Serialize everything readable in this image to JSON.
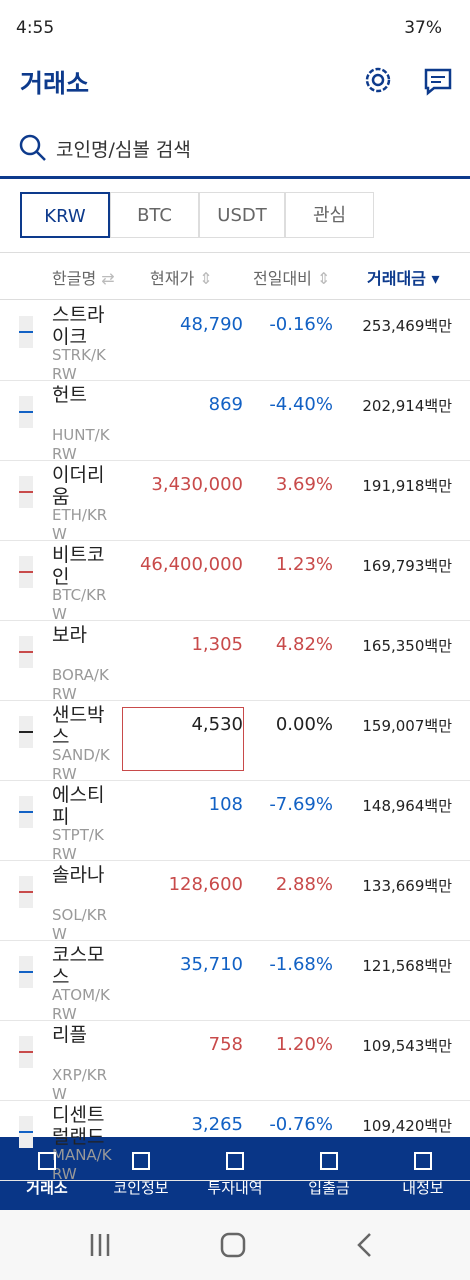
{
  "status_bar": {
    "time": "4:55",
    "battery": "37%"
  },
  "header": {
    "title": "거래소"
  },
  "search": {
    "placeholder": "코인명/심볼 검색"
  },
  "tabs": [
    "KRW",
    "BTC",
    "USDT",
    "관심"
  ],
  "columns": [
    "한글명",
    "현재가",
    "전일대비",
    "거래대금"
  ],
  "rows": [
    {
      "name": "스트라이크",
      "symbol": "STRK/KRW",
      "price": "48,790",
      "change": "-0.16%",
      "volume": "253,469백만",
      "color": "#1261c4"
    },
    {
      "name": "헌트",
      "symbol": "HUNT/KRW",
      "price": "869",
      "change": "-4.40%",
      "volume": "202,914백만",
      "color": "#1261c4"
    },
    {
      "name": "이더리움",
      "symbol": "ETH/KRW",
      "price": "3,430,000",
      "change": "3.69%",
      "volume": "191,918백만",
      "color": "#c84a4a"
    },
    {
      "name": "비트코인",
      "symbol": "BTC/KRW",
      "price": "46,400,000",
      "change": "1.23%",
      "volume": "169,793백만",
      "color": "#c84a4a"
    },
    {
      "name": "보라",
      "symbol": "BORA/KRW",
      "price": "1,305",
      "change": "4.82%",
      "volume": "165,350백만",
      "color": "#c84a4a"
    },
    {
      "name": "샌드박스",
      "symbol": "SAND/KRW",
      "price": "4,530",
      "change": "0.00%",
      "volume": "159,007백만",
      "color": "#222222"
    },
    {
      "name": "에스티피",
      "symbol": "STPT/KRW",
      "price": "108",
      "change": "-7.69%",
      "volume": "148,964백만",
      "color": "#1261c4"
    },
    {
      "name": "솔라나",
      "symbol": "SOL/KRW",
      "price": "128,600",
      "change": "2.88%",
      "volume": "133,669백만",
      "color": "#c84a4a"
    },
    {
      "name": "코스모스",
      "symbol": "ATOM/KRW",
      "price": "35,710",
      "change": "-1.68%",
      "volume": "121,568백만",
      "color": "#1261c4"
    },
    {
      "name": "리플",
      "symbol": "XRP/KRW",
      "price": "758",
      "change": "1.20%",
      "volume": "109,543백만",
      "color": "#c84a4a"
    },
    {
      "name": "디센트럴랜드",
      "symbol": "MANA/KRW",
      "price": "3,265",
      "change": "-0.76%",
      "volume": "109,420백만",
      "color": "#1261c4"
    }
  ],
  "nav": [
    "거래소",
    "코인정보",
    "투자내역",
    "입출금",
    "내정보"
  ]
}
